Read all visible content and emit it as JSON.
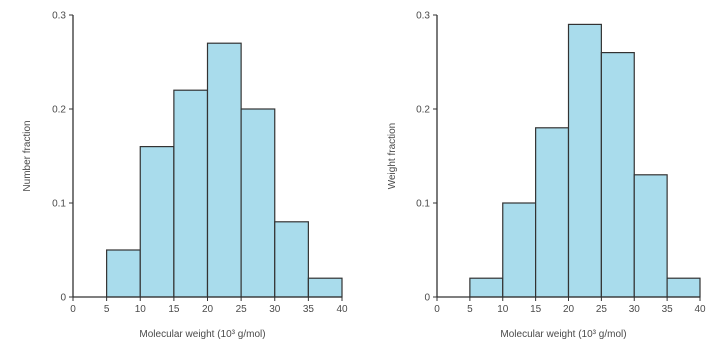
{
  "chart_data": [
    {
      "type": "bar",
      "title": "",
      "xlabel": "Molecular weight (10³ g/mol)",
      "ylabel": "Number fraction",
      "xlim": [
        0,
        40
      ],
      "ylim": [
        0,
        0.3
      ],
      "xticks": [
        "0",
        "5",
        "10",
        "15",
        "20",
        "25",
        "30",
        "35",
        "40"
      ],
      "yticks": [
        "0",
        "0.1",
        "0.2",
        "0.3"
      ],
      "bins": [
        [
          5,
          10
        ],
        [
          10,
          15
        ],
        [
          15,
          20
        ],
        [
          20,
          25
        ],
        [
          25,
          30
        ],
        [
          30,
          35
        ],
        [
          35,
          40
        ]
      ],
      "values": [
        0.05,
        0.16,
        0.22,
        0.27,
        0.2,
        0.08,
        0.02
      ],
      "bar_color": "#a9dcec",
      "grid": false
    },
    {
      "type": "bar",
      "title": "",
      "xlabel": "Molecular weight (10³ g/mol)",
      "ylabel": "Weight fraction",
      "xlim": [
        0,
        40
      ],
      "ylim": [
        0,
        0.3
      ],
      "xticks": [
        "0",
        "5",
        "10",
        "15",
        "20",
        "25",
        "30",
        "35",
        "40"
      ],
      "yticks": [
        "0",
        "0.1",
        "0.2",
        "0.3"
      ],
      "bins": [
        [
          5,
          10
        ],
        [
          10,
          15
        ],
        [
          15,
          20
        ],
        [
          20,
          25
        ],
        [
          25,
          30
        ],
        [
          30,
          35
        ],
        [
          35,
          40
        ]
      ],
      "values": [
        0.02,
        0.1,
        0.18,
        0.29,
        0.26,
        0.13,
        0.02
      ],
      "bar_color": "#a9dcec",
      "grid": false
    }
  ]
}
